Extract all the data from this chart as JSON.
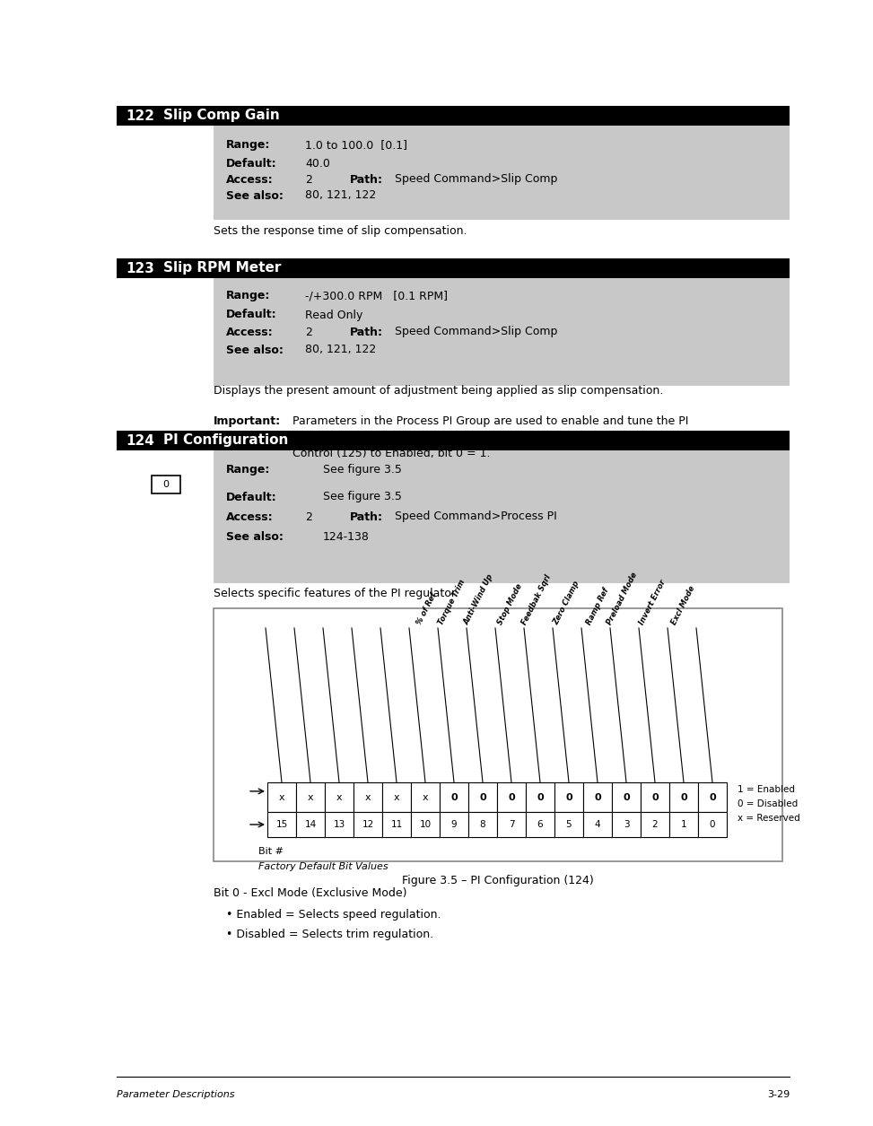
{
  "page_bg": "#ffffff",
  "header_bg": "#000000",
  "table_bg": "#c8c8c8",
  "section122": {
    "number": "122",
    "title": "Slip Comp Gain",
    "range_label": "Range:",
    "range_val": "1.0 to 100.0  [0.1]",
    "default_label": "Default:",
    "default_val": "40.0",
    "access_label": "Access:",
    "access_val": "2",
    "path_label": "Path:",
    "path_val": "Speed Command>Slip Comp",
    "seealso_label": "See also:",
    "seealso_val": "80, 121, 122",
    "desc": "Sets the response time of slip compensation."
  },
  "section123": {
    "number": "123",
    "title": "Slip RPM Meter",
    "range_label": "Range:",
    "range_val": "-/+300.0 RPM   [0.1 RPM]",
    "default_label": "Default:",
    "default_val": "Read Only",
    "access_label": "Access:",
    "access_val": "2",
    "path_label": "Path:",
    "path_val": "Speed Command>Slip Comp",
    "seealso_label": "See also:",
    "seealso_val": "80, 121, 122",
    "desc": "Displays the present amount of adjustment being applied as slip compensation.",
    "important_label": "Important:",
    "important_text": "Parameters in the Process PI Group are used to enable and tune the PI\nLoop. In order to allow the PI Loop to control drive operation, set PI\nControl (125) to Enabled, bit 0 = 1."
  },
  "section124": {
    "number": "124",
    "title": "PI Configuration",
    "range_label": "Range:",
    "range_val": "See figure 3.5",
    "default_label": "Default:",
    "default_val": "See figure 3.5",
    "access_label": "Access:",
    "access_val": "2",
    "path_label": "Path:",
    "path_val": "Speed Command>Process PI",
    "seealso_label": "See also:",
    "seealso_val": "124-138",
    "desc": "Selects specific features of the PI regulator.",
    "fig_caption": "Figure 3.5 – PI Configuration (124)",
    "fig_bit_labels": [
      "% of Ref",
      "Torque Trim",
      "Anti-Wind Up",
      "Stop Mode",
      "Feedbak Sqrl",
      "Zero Clamp",
      "Ramp Ref",
      "Preload Mode",
      "Invert Error",
      "Excl Mode"
    ],
    "fig_x_values": [
      "x",
      "x",
      "x",
      "x",
      "x",
      "x",
      "0",
      "0",
      "0",
      "0",
      "0",
      "0",
      "0",
      "0",
      "0",
      "0"
    ],
    "fig_bit_nums": [
      "15",
      "14",
      "13",
      "12",
      "11",
      "10",
      "9",
      "8",
      "7",
      "6",
      "5",
      "4",
      "3",
      "2",
      "1",
      "0"
    ],
    "fig_legend": [
      "1 = Enabled",
      "0 = Disabled",
      "x = Reserved"
    ],
    "fig_note1": "Bit #",
    "fig_note2": "Factory Default Bit Values"
  },
  "bullets_124": [
    "Bit 0 - Excl Mode (Exclusive Mode)",
    "• Enabled = Selects speed regulation.",
    "• Disabled = Selects trim regulation."
  ],
  "footer_left": "Parameter Descriptions",
  "footer_right": "3-29"
}
